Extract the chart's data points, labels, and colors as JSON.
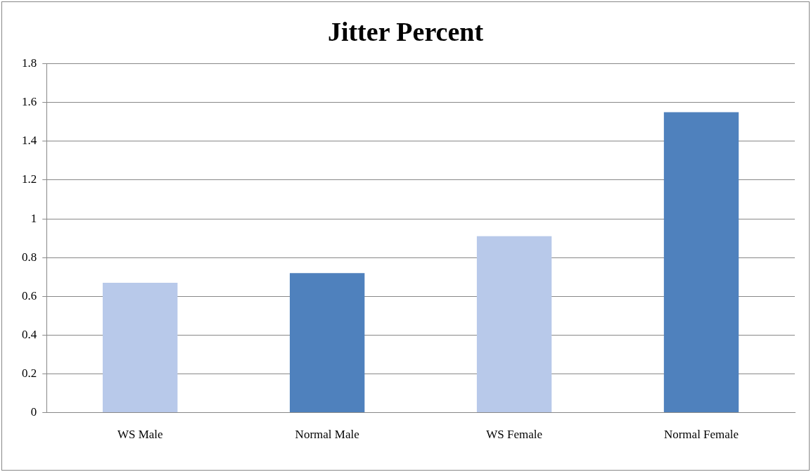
{
  "chart_data": {
    "type": "bar",
    "title": "Jitter Percent",
    "categories": [
      "WS Male",
      "Normal Male",
      "WS Female",
      "Normal Female"
    ],
    "values": [
      0.67,
      0.72,
      0.91,
      1.55
    ],
    "colors": [
      "#b8c9ea",
      "#4f81bd",
      "#b8c9ea",
      "#4f81bd"
    ],
    "ylim": [
      0,
      1.8
    ],
    "yticks": [
      0,
      0.2,
      0.4,
      0.6,
      0.8,
      1,
      1.2,
      1.4,
      1.6,
      1.8
    ],
    "grid": "y"
  }
}
